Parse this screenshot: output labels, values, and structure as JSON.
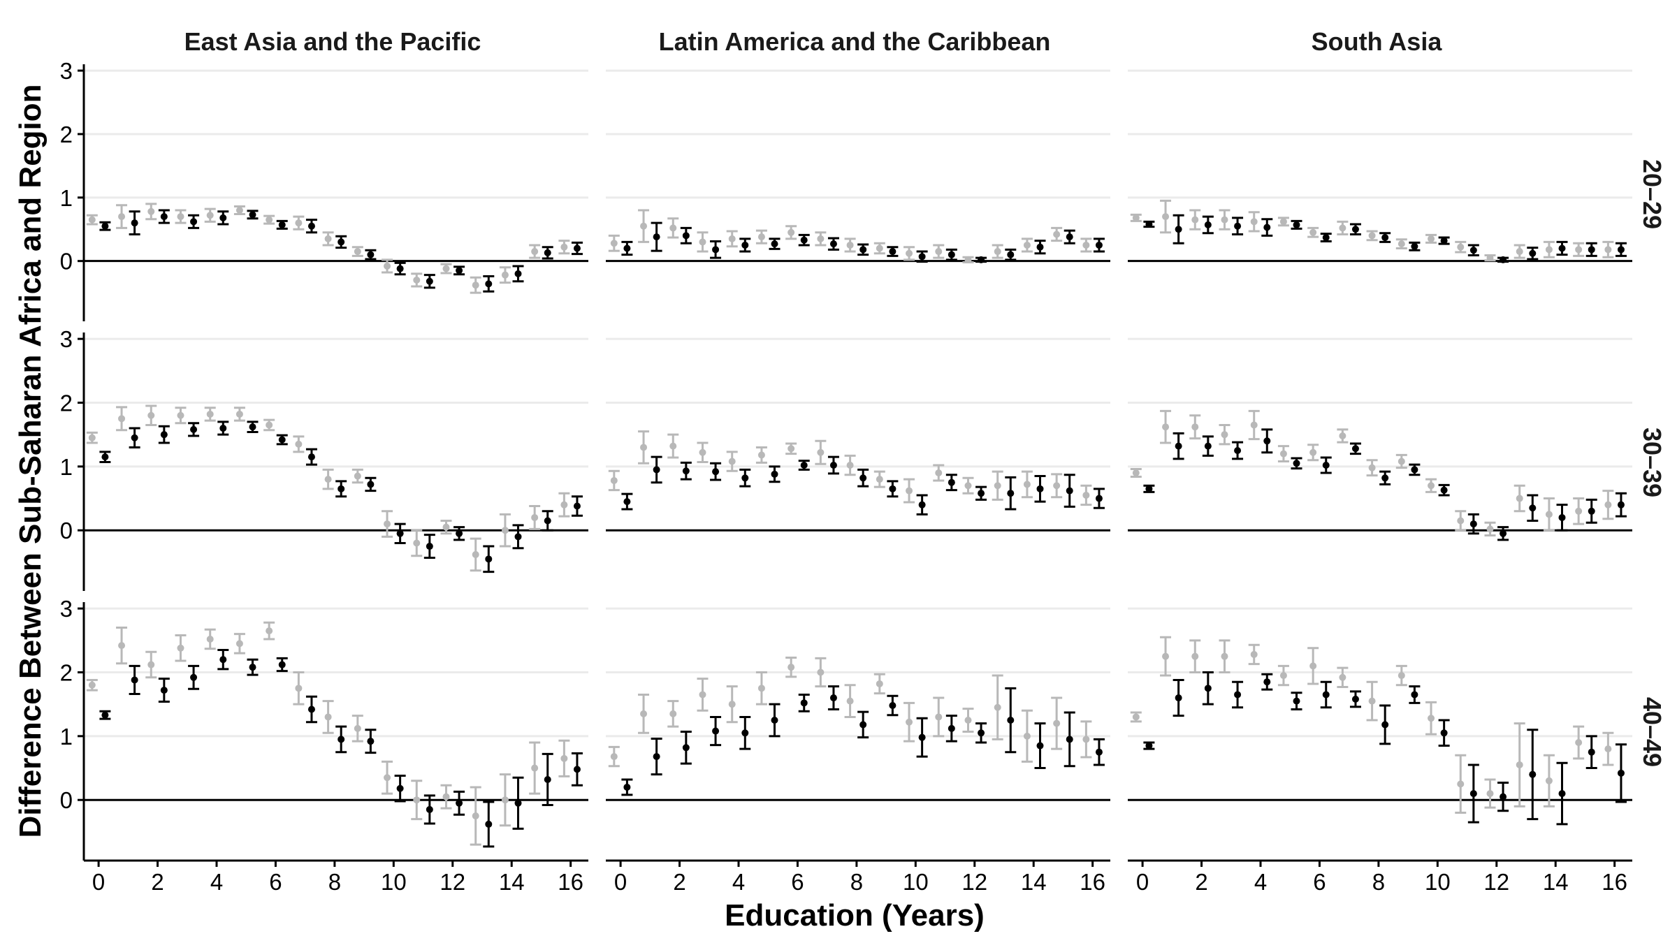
{
  "chart_data": {
    "type": "errorbar",
    "xlabel": "Education (Years)",
    "ylabel": "Difference Between Sub-Saharan Africa and Region",
    "x_ticks": [
      0,
      2,
      4,
      6,
      8,
      10,
      12,
      14,
      16
    ],
    "y_ticks": [
      0,
      1,
      2,
      3
    ],
    "xlim": [
      -0.5,
      16.6
    ],
    "ylim": [
      -0.95,
      3.1
    ],
    "columns": [
      "East Asia and the Pacific",
      "Latin America and the Caribbean",
      "South Asia"
    ],
    "rows": [
      "20–29",
      "30–39",
      "40–49"
    ],
    "series_colors": {
      "grey": "#b8b8b8",
      "black": "#000000"
    },
    "x": [
      0,
      1,
      2,
      3,
      4,
      5,
      6,
      7,
      8,
      9,
      10,
      11,
      12,
      13,
      14,
      15,
      16
    ],
    "panels": [
      {
        "column": "East Asia and the Pacific",
        "row": "20–29",
        "grey": {
          "y": [
            0.65,
            0.7,
            0.78,
            0.7,
            0.72,
            0.8,
            0.65,
            0.6,
            0.35,
            0.15,
            -0.08,
            -0.3,
            -0.12,
            -0.38,
            -0.22,
            0.15,
            0.22
          ],
          "err": [
            0.07,
            0.18,
            0.12,
            0.1,
            0.1,
            0.06,
            0.06,
            0.1,
            0.1,
            0.07,
            0.1,
            0.1,
            0.07,
            0.12,
            0.12,
            0.1,
            0.1
          ]
        },
        "black": {
          "y": [
            0.55,
            0.6,
            0.7,
            0.62,
            0.68,
            0.73,
            0.57,
            0.55,
            0.3,
            0.1,
            -0.12,
            -0.32,
            -0.15,
            -0.36,
            -0.2,
            0.13,
            0.2
          ],
          "err": [
            0.06,
            0.18,
            0.1,
            0.1,
            0.1,
            0.06,
            0.06,
            0.1,
            0.09,
            0.07,
            0.09,
            0.1,
            0.06,
            0.12,
            0.12,
            0.09,
            0.09
          ]
        }
      },
      {
        "column": "Latin America and the Caribbean",
        "row": "20–29",
        "grey": {
          "y": [
            0.28,
            0.55,
            0.52,
            0.3,
            0.35,
            0.38,
            0.45,
            0.35,
            0.25,
            0.2,
            0.12,
            0.15,
            0.02,
            0.15,
            0.25,
            0.42,
            0.25
          ],
          "err": [
            0.12,
            0.25,
            0.15,
            0.15,
            0.12,
            0.1,
            0.1,
            0.1,
            0.1,
            0.08,
            0.1,
            0.1,
            0.04,
            0.1,
            0.1,
            0.1,
            0.1
          ]
        },
        "black": {
          "y": [
            0.2,
            0.38,
            0.4,
            0.18,
            0.25,
            0.27,
            0.33,
            0.27,
            0.18,
            0.15,
            0.07,
            0.1,
            0.02,
            0.1,
            0.22,
            0.38,
            0.25
          ],
          "err": [
            0.1,
            0.22,
            0.12,
            0.13,
            0.1,
            0.08,
            0.08,
            0.09,
            0.08,
            0.07,
            0.08,
            0.08,
            0.03,
            0.08,
            0.1,
            0.1,
            0.1
          ]
        }
      },
      {
        "column": "South Asia",
        "row": "20–29",
        "grey": {
          "y": [
            0.68,
            0.7,
            0.65,
            0.65,
            0.62,
            0.62,
            0.45,
            0.52,
            0.4,
            0.27,
            0.35,
            0.22,
            0.05,
            0.15,
            0.18,
            0.18,
            0.18
          ],
          "err": [
            0.05,
            0.25,
            0.15,
            0.15,
            0.15,
            0.06,
            0.07,
            0.1,
            0.07,
            0.07,
            0.06,
            0.08,
            0.04,
            0.1,
            0.12,
            0.1,
            0.12
          ]
        },
        "black": {
          "y": [
            0.58,
            0.5,
            0.57,
            0.55,
            0.53,
            0.57,
            0.37,
            0.5,
            0.37,
            0.23,
            0.32,
            0.17,
            0.02,
            0.12,
            0.2,
            0.18,
            0.18
          ],
          "err": [
            0.04,
            0.22,
            0.13,
            0.13,
            0.13,
            0.06,
            0.06,
            0.08,
            0.07,
            0.06,
            0.05,
            0.08,
            0.03,
            0.09,
            0.1,
            0.1,
            0.1
          ]
        }
      },
      {
        "column": "East Asia and the Pacific",
        "row": "30–39",
        "grey": {
          "y": [
            1.45,
            1.75,
            1.8,
            1.8,
            1.82,
            1.82,
            1.65,
            1.35,
            0.8,
            0.85,
            0.1,
            -0.2,
            0.05,
            -0.38,
            0.0,
            0.2,
            0.4
          ],
          "err": [
            0.08,
            0.18,
            0.15,
            0.12,
            0.1,
            0.1,
            0.08,
            0.12,
            0.15,
            0.1,
            0.2,
            0.2,
            0.1,
            0.25,
            0.25,
            0.18,
            0.18
          ]
        },
        "black": {
          "y": [
            1.15,
            1.45,
            1.5,
            1.58,
            1.6,
            1.62,
            1.42,
            1.15,
            0.65,
            0.72,
            -0.05,
            -0.25,
            -0.05,
            -0.45,
            -0.1,
            0.15,
            0.38
          ],
          "err": [
            0.08,
            0.15,
            0.13,
            0.1,
            0.1,
            0.08,
            0.07,
            0.12,
            0.12,
            0.1,
            0.15,
            0.18,
            0.1,
            0.2,
            0.18,
            0.15,
            0.15
          ]
        }
      },
      {
        "column": "Latin America and the Caribbean",
        "row": "30–39",
        "grey": {
          "y": [
            0.78,
            1.3,
            1.32,
            1.22,
            1.08,
            1.18,
            1.28,
            1.22,
            1.02,
            0.8,
            0.62,
            0.9,
            0.7,
            0.7,
            0.72,
            0.7,
            0.55
          ],
          "err": [
            0.15,
            0.25,
            0.18,
            0.15,
            0.15,
            0.12,
            0.08,
            0.18,
            0.15,
            0.12,
            0.18,
            0.12,
            0.12,
            0.22,
            0.2,
            0.18,
            0.15
          ]
        },
        "black": {
          "y": [
            0.45,
            0.95,
            0.93,
            0.92,
            0.82,
            0.88,
            1.02,
            1.02,
            0.82,
            0.65,
            0.4,
            0.75,
            0.58,
            0.58,
            0.65,
            0.62,
            0.5
          ],
          "err": [
            0.12,
            0.2,
            0.13,
            0.13,
            0.13,
            0.12,
            0.07,
            0.13,
            0.13,
            0.12,
            0.15,
            0.12,
            0.1,
            0.25,
            0.2,
            0.25,
            0.15
          ]
        }
      },
      {
        "column": "South Asia",
        "row": "30–39",
        "grey": {
          "y": [
            0.9,
            1.62,
            1.62,
            1.5,
            1.65,
            1.2,
            1.22,
            1.48,
            0.98,
            1.08,
            0.7,
            0.15,
            0.02,
            0.5,
            0.25,
            0.3,
            0.4
          ],
          "err": [
            0.06,
            0.25,
            0.18,
            0.15,
            0.22,
            0.12,
            0.12,
            0.1,
            0.12,
            0.1,
            0.1,
            0.15,
            0.1,
            0.2,
            0.25,
            0.2,
            0.22
          ]
        },
        "black": {
          "y": [
            0.65,
            1.32,
            1.32,
            1.25,
            1.4,
            1.05,
            1.02,
            1.28,
            0.82,
            0.95,
            0.63,
            0.1,
            -0.05,
            0.35,
            0.2,
            0.3,
            0.4
          ],
          "err": [
            0.05,
            0.2,
            0.15,
            0.13,
            0.18,
            0.08,
            0.12,
            0.08,
            0.1,
            0.08,
            0.08,
            0.15,
            0.1,
            0.2,
            0.2,
            0.18,
            0.18
          ]
        }
      },
      {
        "column": "East Asia and the Pacific",
        "row": "40–49",
        "grey": {
          "y": [
            1.8,
            2.42,
            2.12,
            2.38,
            2.52,
            2.45,
            2.65,
            1.75,
            1.3,
            1.12,
            0.35,
            0.0,
            0.05,
            -0.25,
            0.0,
            0.5,
            0.65
          ],
          "err": [
            0.08,
            0.28,
            0.2,
            0.2,
            0.15,
            0.15,
            0.13,
            0.25,
            0.25,
            0.2,
            0.25,
            0.3,
            0.18,
            0.45,
            0.4,
            0.4,
            0.28
          ]
        },
        "black": {
          "y": [
            1.33,
            1.88,
            1.72,
            1.92,
            2.2,
            2.08,
            2.12,
            1.42,
            0.95,
            0.92,
            0.18,
            -0.15,
            -0.05,
            -0.38,
            -0.05,
            0.32,
            0.48
          ],
          "err": [
            0.06,
            0.22,
            0.18,
            0.18,
            0.15,
            0.12,
            0.1,
            0.2,
            0.2,
            0.18,
            0.2,
            0.22,
            0.18,
            0.35,
            0.4,
            0.4,
            0.25
          ]
        }
      },
      {
        "column": "Latin America and the Caribbean",
        "row": "40–49",
        "grey": {
          "y": [
            0.68,
            1.35,
            1.35,
            1.65,
            1.5,
            1.75,
            2.08,
            2.0,
            1.55,
            1.82,
            1.22,
            1.3,
            1.25,
            1.45,
            1.0,
            1.2,
            0.95
          ],
          "err": [
            0.15,
            0.3,
            0.2,
            0.25,
            0.28,
            0.25,
            0.15,
            0.22,
            0.25,
            0.15,
            0.3,
            0.3,
            0.18,
            0.5,
            0.4,
            0.4,
            0.28
          ]
        },
        "black": {
          "y": [
            0.2,
            0.68,
            0.82,
            1.08,
            1.05,
            1.25,
            1.52,
            1.6,
            1.18,
            1.48,
            0.98,
            1.12,
            1.05,
            1.25,
            0.85,
            0.95,
            0.75
          ],
          "err": [
            0.12,
            0.28,
            0.25,
            0.22,
            0.25,
            0.25,
            0.13,
            0.18,
            0.2,
            0.15,
            0.3,
            0.2,
            0.15,
            0.5,
            0.35,
            0.42,
            0.2
          ]
        }
      },
      {
        "column": "South Asia",
        "row": "40–49",
        "grey": {
          "y": [
            1.3,
            2.25,
            2.25,
            2.25,
            2.28,
            1.95,
            2.1,
            1.92,
            1.55,
            1.95,
            1.28,
            0.25,
            0.1,
            0.55,
            0.3,
            0.9,
            0.8
          ],
          "err": [
            0.07,
            0.3,
            0.25,
            0.25,
            0.15,
            0.15,
            0.28,
            0.15,
            0.3,
            0.15,
            0.25,
            0.45,
            0.22,
            0.65,
            0.4,
            0.25,
            0.25
          ]
        },
        "black": {
          "y": [
            0.85,
            1.6,
            1.75,
            1.65,
            1.85,
            1.55,
            1.65,
            1.58,
            1.18,
            1.65,
            1.05,
            0.1,
            0.05,
            0.4,
            0.1,
            0.75,
            0.42
          ],
          "err": [
            0.05,
            0.28,
            0.25,
            0.2,
            0.12,
            0.13,
            0.2,
            0.12,
            0.3,
            0.13,
            0.2,
            0.45,
            0.22,
            0.7,
            0.48,
            0.25,
            0.45
          ]
        }
      }
    ]
  }
}
